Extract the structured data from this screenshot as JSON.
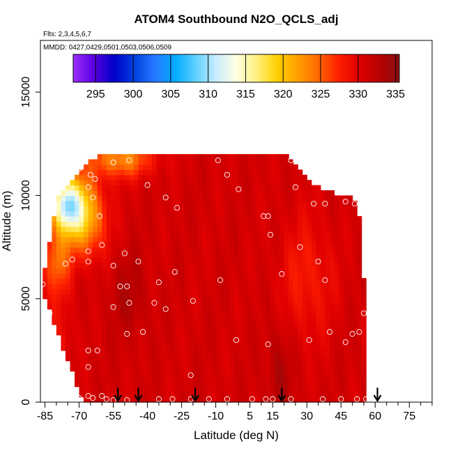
{
  "chart_data": {
    "type": "heatmap",
    "title": "ATOM4 Southbound N2O_QCLS_adj",
    "flights_note": "Flts: 2,3,4,5,6,7",
    "dates_note": "MMDD: 0427,0429,0501,0503,0506,0509",
    "xlabel": "Latitude (deg N)",
    "ylabel": "Altitude (m)",
    "xlim": [
      -87,
      85
    ],
    "ylim": [
      0,
      17500
    ],
    "x_ticks": [
      -85,
      -70,
      -55,
      -40,
      -25,
      -10,
      5,
      15,
      30,
      45,
      60,
      75
    ],
    "y_ticks": [
      0,
      5000,
      10000,
      15000
    ],
    "colorbar": {
      "min": 292,
      "max": 335.5,
      "ticks": [
        295,
        300,
        305,
        310,
        315,
        320,
        325,
        330,
        335
      ],
      "colors": [
        "#9b30ff",
        "#5a00e0",
        "#0000c8",
        "#0040e0",
        "#2878ff",
        "#00aaff",
        "#60d0ff",
        "#c8ecff",
        "#ffffe0",
        "#fff080",
        "#ffd000",
        "#ffa000",
        "#ff6a00",
        "#ff2000",
        "#e00000",
        "#b80000",
        "#8b1010"
      ]
    },
    "field": {
      "lat_extent": [
        -86,
        55
      ],
      "top_alt_by_lat": [
        [
          -86,
          5700
        ],
        [
          -84,
          7300
        ],
        [
          -82,
          8000
        ],
        [
          -80,
          10000
        ],
        [
          -78,
          10200
        ],
        [
          -76,
          10400
        ],
        [
          -74,
          10600
        ],
        [
          -70,
          11000
        ],
        [
          -66,
          11700
        ],
        [
          -60,
          12000
        ],
        [
          -50,
          12000
        ],
        [
          -40,
          12000
        ],
        [
          -20,
          12000
        ],
        [
          0,
          12000
        ],
        [
          20,
          12000
        ],
        [
          24,
          11500
        ],
        [
          28,
          11000
        ],
        [
          32,
          10500
        ],
        [
          38,
          10300
        ],
        [
          45,
          10000
        ],
        [
          50,
          10000
        ],
        [
          53,
          9000
        ],
        [
          54,
          8000
        ],
        [
          55,
          6000
        ],
        [
          55,
          0
        ]
      ],
      "bottom_alt_by_lat": [
        [
          -86,
          5300
        ],
        [
          -84,
          4800
        ],
        [
          -82,
          4200
        ],
        [
          -80,
          3500
        ],
        [
          -78,
          2800
        ],
        [
          -76,
          2200
        ],
        [
          -74,
          1700
        ],
        [
          -72,
          1100
        ],
        [
          -70,
          500
        ],
        [
          -68,
          0
        ],
        [
          55,
          0
        ]
      ],
      "background_value": 331,
      "features": [
        {
          "lat": -76,
          "alt": 9600,
          "value": 314,
          "spread_lat": 7,
          "spread_alt": 1300
        },
        {
          "lat": -68,
          "alt": 9000,
          "value": 320,
          "spread_lat": 9,
          "spread_alt": 1800
        },
        {
          "lat": -52,
          "alt": 11800,
          "value": 323,
          "spread_lat": 14,
          "spread_alt": 900
        },
        {
          "lat": -80,
          "alt": 6800,
          "value": 325,
          "spread_lat": 6,
          "spread_alt": 1500
        },
        {
          "lat": -78,
          "alt": 3000,
          "value": 329,
          "spread_lat": 6,
          "spread_alt": 2500
        },
        {
          "lat": -48,
          "alt": 5200,
          "value": 333,
          "spread_lat": 8,
          "spread_alt": 2000
        },
        {
          "lat": 18,
          "alt": 1500,
          "value": 333.5,
          "spread_lat": 5,
          "spread_alt": 2500
        },
        {
          "lat": 30,
          "alt": 6000,
          "value": 328,
          "spread_lat": 12,
          "spread_alt": 3000
        }
      ]
    },
    "sample_points": [
      [
        -86,
        5700
      ],
      [
        -83,
        4300
      ],
      [
        -76,
        6700
      ],
      [
        -73,
        6900
      ],
      [
        -66,
        6800
      ],
      [
        -66,
        7300
      ],
      [
        -60,
        7600
      ],
      [
        -55,
        6600
      ],
      [
        -50,
        7200
      ],
      [
        -52,
        5600
      ],
      [
        -49,
        5600
      ],
      [
        -55,
        4600
      ],
      [
        -48,
        4800
      ],
      [
        -42,
        3400
      ],
      [
        -49,
        3300
      ],
      [
        -37,
        4800
      ],
      [
        -35,
        5800
      ],
      [
        -32,
        4500
      ],
      [
        -28,
        6300
      ],
      [
        -20,
        4900
      ],
      [
        -44,
        6800
      ],
      [
        -27,
        9400
      ],
      [
        -32,
        9900
      ],
      [
        -40,
        10500
      ],
      [
        -66,
        10400
      ],
      [
        -63,
        10800
      ],
      [
        -61,
        9000
      ],
      [
        -65,
        11000
      ],
      [
        -70,
        11300
      ],
      [
        -64,
        9900
      ],
      [
        -55,
        11600
      ],
      [
        -48,
        11700
      ],
      [
        -9,
        11700
      ],
      [
        -5,
        11000
      ],
      [
        0,
        10300
      ],
      [
        11,
        9000
      ],
      [
        13,
        9000
      ],
      [
        14,
        8100
      ],
      [
        23,
        11700
      ],
      [
        25,
        10400
      ],
      [
        27,
        7500
      ],
      [
        33,
        9600
      ],
      [
        38,
        9600
      ],
      [
        47,
        9700
      ],
      [
        51,
        9600
      ],
      [
        35,
        6800
      ],
      [
        38,
        5900
      ],
      [
        -8,
        5900
      ],
      [
        19,
        6200
      ],
      [
        -1,
        3000
      ],
      [
        13,
        2800
      ],
      [
        31,
        3000
      ],
      [
        40,
        3400
      ],
      [
        47,
        2900
      ],
      [
        50,
        3300
      ],
      [
        55,
        4300
      ],
      [
        53,
        3400
      ],
      [
        -66,
        2500
      ],
      [
        -62,
        2500
      ],
      [
        -66,
        1700
      ],
      [
        -21,
        1300
      ],
      [
        -70,
        200
      ],
      [
        -66,
        300
      ],
      [
        -64,
        200
      ],
      [
        -60,
        300
      ],
      [
        -58,
        150
      ],
      [
        -55,
        100
      ],
      [
        -49,
        100
      ],
      [
        -35,
        150
      ],
      [
        -29,
        150
      ],
      [
        -21,
        150
      ],
      [
        -13,
        150
      ],
      [
        -5,
        150
      ],
      [
        6,
        150
      ],
      [
        12,
        150
      ],
      [
        15,
        150
      ],
      [
        23,
        150
      ],
      [
        37,
        150
      ],
      [
        45,
        150
      ],
      [
        52,
        150
      ],
      [
        56,
        150
      ]
    ],
    "arrows_lat": [
      -53,
      -44,
      -19,
      19,
      61
    ]
  }
}
